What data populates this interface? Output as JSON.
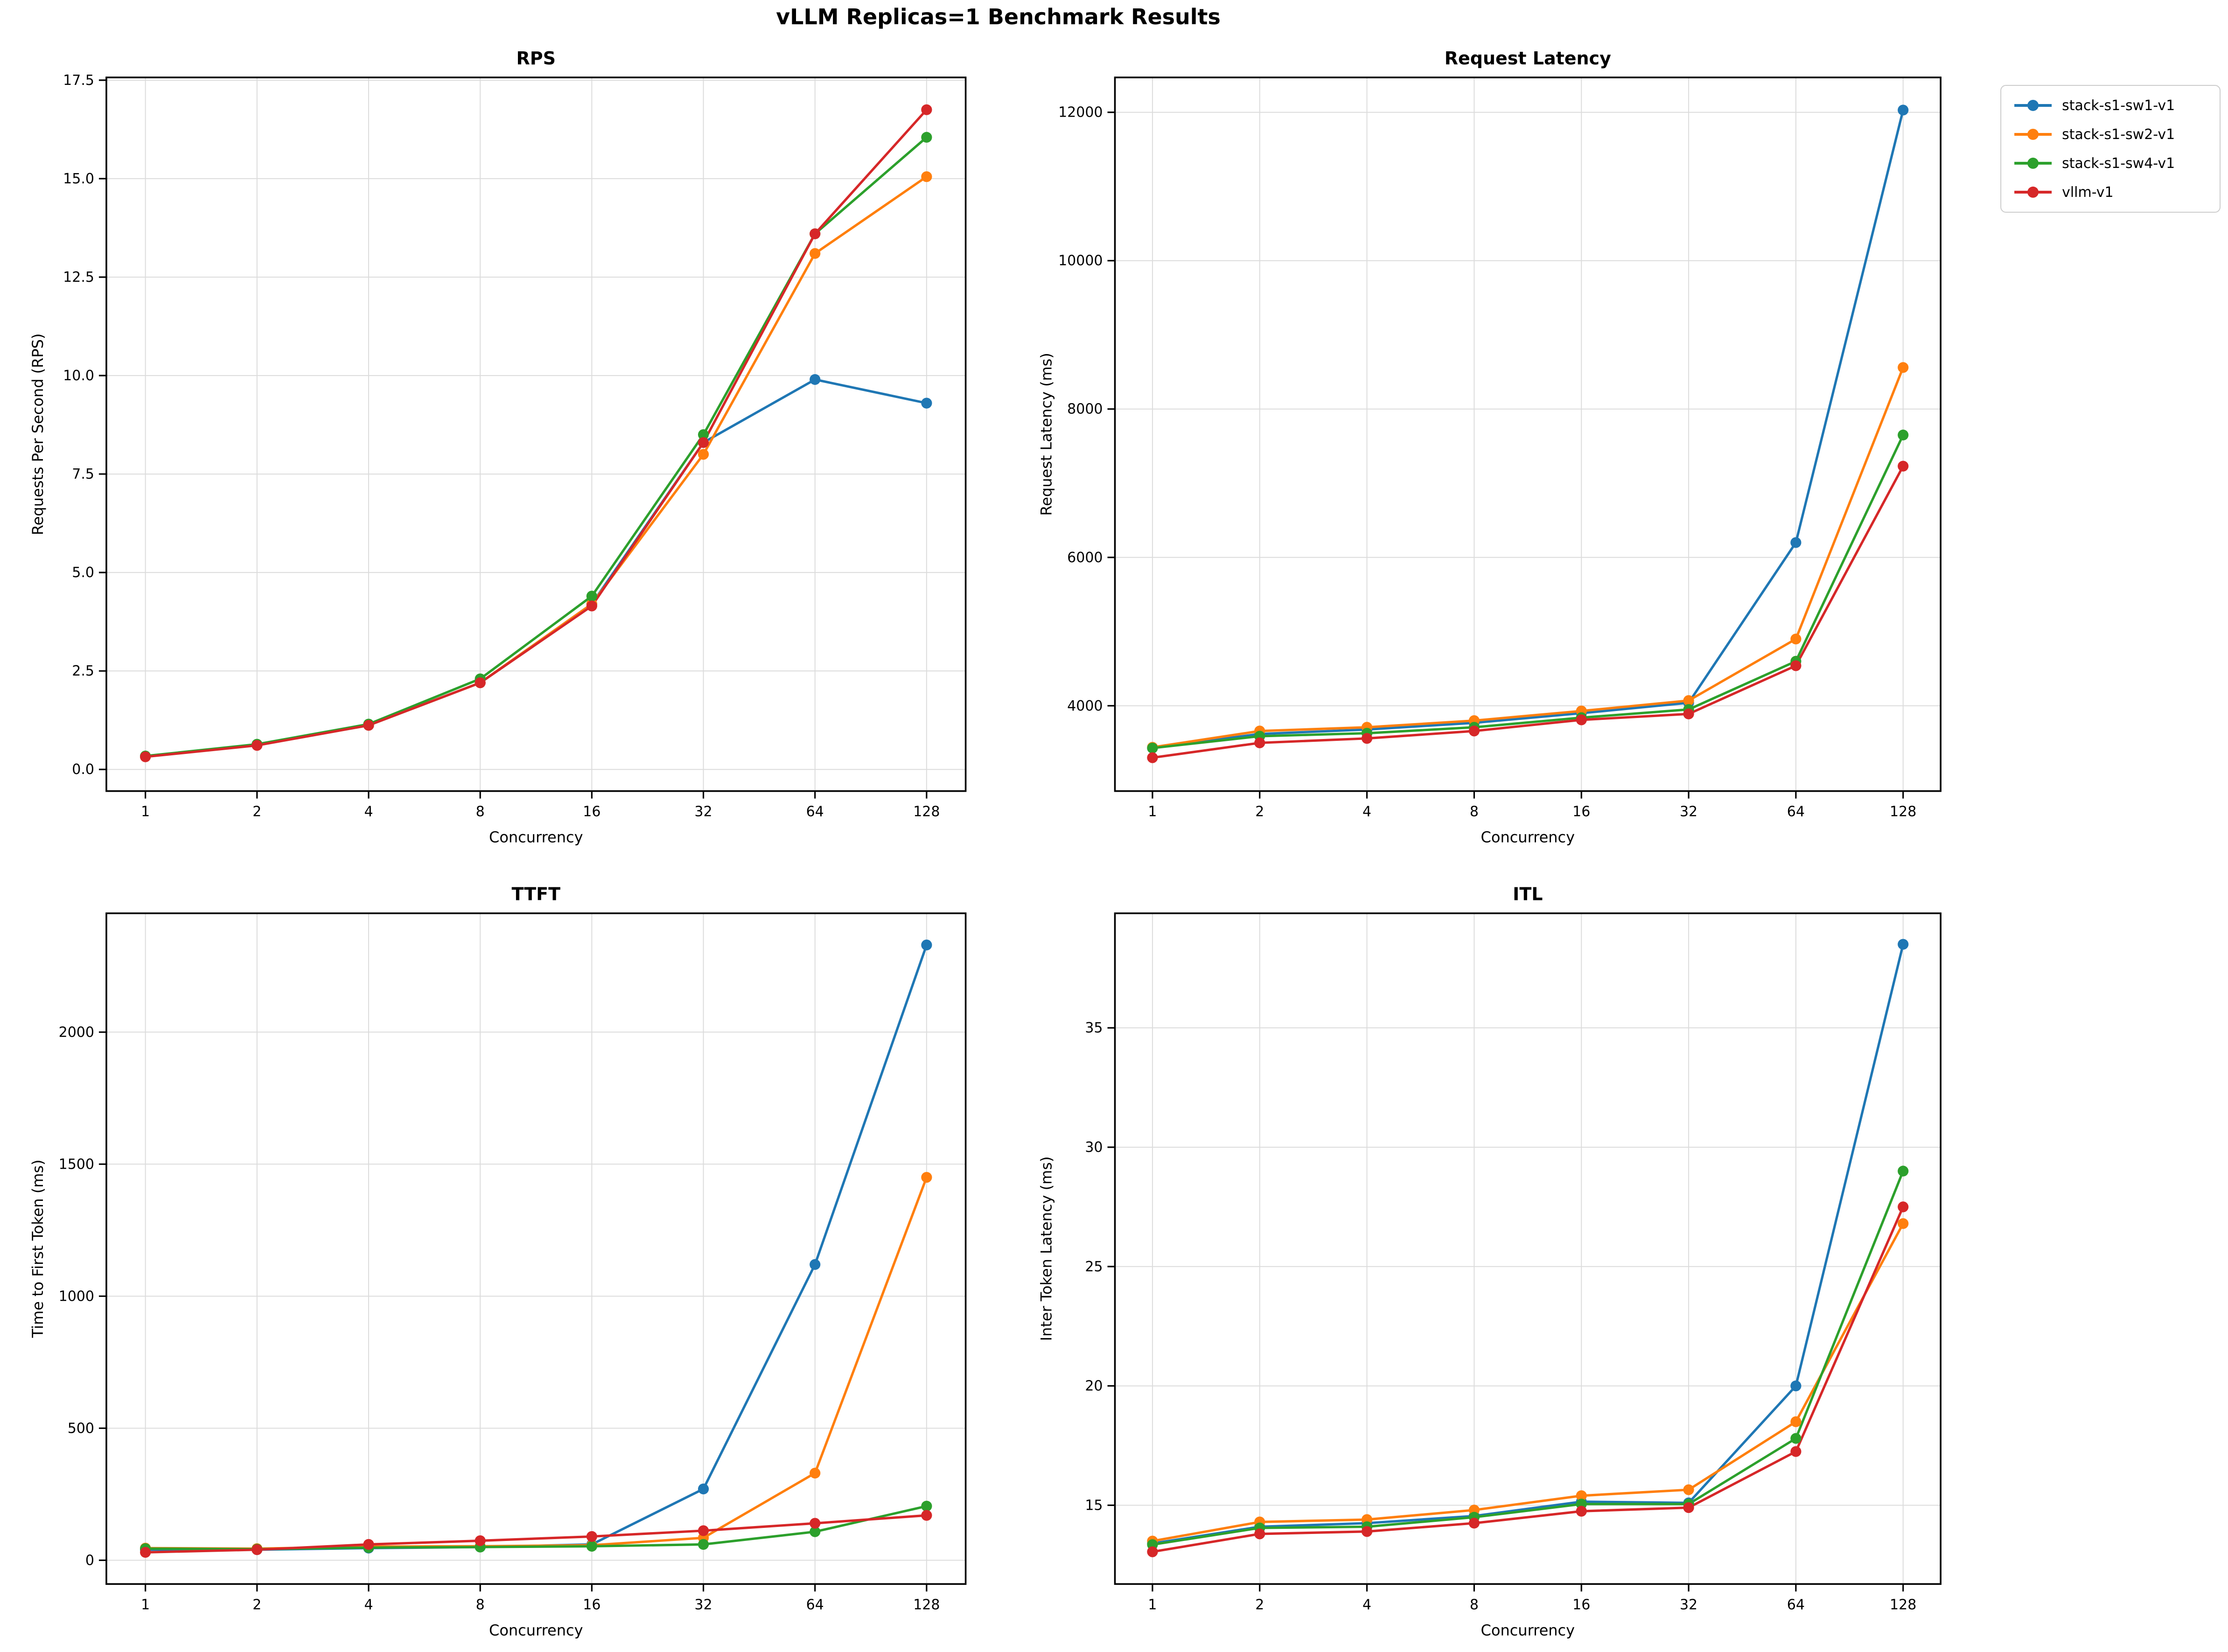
{
  "page": {
    "suptitle": "vLLM Replicas=1 Benchmark Results"
  },
  "legend": {
    "position": "outside-top-right",
    "items": [
      {
        "label": "stack-s1-sw1-v1",
        "color": "#1f77b4"
      },
      {
        "label": "stack-s1-sw2-v1",
        "color": "#ff7f0e"
      },
      {
        "label": "stack-s1-sw4-v1",
        "color": "#2ca02c"
      },
      {
        "label": "vllm-v1",
        "color": "#d62728"
      }
    ]
  },
  "chart_data": [
    {
      "id": "rps",
      "type": "line",
      "title": "RPS",
      "xlabel": "Concurrency",
      "ylabel": "Requests Per Second (RPS)",
      "x_categories": [
        1,
        2,
        4,
        8,
        16,
        32,
        64,
        128
      ],
      "x_tick_labels": [
        "1",
        "2",
        "4",
        "8",
        "16",
        "32",
        "64",
        "128"
      ],
      "ylim": [
        -0.55,
        17.57
      ],
      "yticks": [
        0,
        2.5,
        5,
        7.5,
        10,
        12.5,
        15,
        17.5
      ],
      "ytick_labels": [
        "0.0",
        "2.5",
        "5.0",
        "7.5",
        "10.0",
        "12.5",
        "15.0",
        "17.5"
      ],
      "grid": true,
      "series": [
        {
          "name": "stack-s1-sw1-v1",
          "color": "#1f77b4",
          "values": [
            0.33,
            0.62,
            1.12,
            2.2,
            4.2,
            8.3,
            9.9,
            9.3
          ]
        },
        {
          "name": "stack-s1-sw2-v1",
          "color": "#ff7f0e",
          "values": [
            0.33,
            0.62,
            1.12,
            2.2,
            4.2,
            8.0,
            13.1,
            15.05
          ]
        },
        {
          "name": "stack-s1-sw4-v1",
          "color": "#2ca02c",
          "values": [
            0.34,
            0.64,
            1.15,
            2.3,
            4.4,
            8.5,
            13.6,
            16.05
          ]
        },
        {
          "name": "vllm-v1",
          "color": "#d62728",
          "values": [
            0.32,
            0.61,
            1.12,
            2.2,
            4.15,
            8.3,
            13.6,
            16.75
          ]
        }
      ]
    },
    {
      "id": "latency",
      "type": "line",
      "title": "Request Latency",
      "xlabel": "Concurrency",
      "ylabel": "Request Latency (ms)",
      "x_categories": [
        1,
        2,
        4,
        8,
        16,
        32,
        64,
        128
      ],
      "x_tick_labels": [
        "1",
        "2",
        "4",
        "8",
        "16",
        "32",
        "64",
        "128"
      ],
      "ylim": [
        2850,
        12470
      ],
      "yticks": [
        4000,
        6000,
        8000,
        10000,
        12000
      ],
      "ytick_labels": [
        "4000",
        "6000",
        "8000",
        "10000",
        "12000"
      ],
      "grid": true,
      "series": [
        {
          "name": "stack-s1-sw1-v1",
          "color": "#1f77b4",
          "values": [
            3430,
            3620,
            3680,
            3770,
            3900,
            4040,
            6200,
            12030
          ]
        },
        {
          "name": "stack-s1-sw2-v1",
          "color": "#ff7f0e",
          "values": [
            3440,
            3660,
            3710,
            3800,
            3930,
            4070,
            4900,
            8560
          ]
        },
        {
          "name": "stack-s1-sw4-v1",
          "color": "#2ca02c",
          "values": [
            3430,
            3590,
            3630,
            3710,
            3840,
            3950,
            4600,
            7650
          ]
        },
        {
          "name": "vllm-v1",
          "color": "#d62728",
          "values": [
            3300,
            3500,
            3560,
            3660,
            3810,
            3890,
            4540,
            7230
          ]
        }
      ]
    },
    {
      "id": "ttft",
      "type": "line",
      "title": "TTFT",
      "xlabel": "Concurrency",
      "ylabel": "Time to First Token (ms)",
      "x_categories": [
        1,
        2,
        4,
        8,
        16,
        32,
        64,
        128
      ],
      "x_tick_labels": [
        "1",
        "2",
        "4",
        "8",
        "16",
        "32",
        "64",
        "128"
      ],
      "ylim": [
        -90,
        2450
      ],
      "yticks": [
        0,
        500,
        1000,
        1500,
        2000
      ],
      "ytick_labels": [
        "0",
        "500",
        "1000",
        "1500",
        "2000"
      ],
      "grid": true,
      "series": [
        {
          "name": "stack-s1-sw1-v1",
          "color": "#1f77b4",
          "values": [
            40,
            40,
            46,
            50,
            60,
            270,
            1120,
            2330
          ]
        },
        {
          "name": "stack-s1-sw2-v1",
          "color": "#ff7f0e",
          "values": [
            46,
            44,
            52,
            53,
            57,
            85,
            330,
            1450
          ]
        },
        {
          "name": "stack-s1-sw4-v1",
          "color": "#2ca02c",
          "values": [
            44,
            42,
            48,
            50,
            53,
            60,
            108,
            205
          ]
        },
        {
          "name": "vllm-v1",
          "color": "#d62728",
          "values": [
            30,
            40,
            60,
            74,
            90,
            112,
            140,
            170
          ]
        }
      ]
    },
    {
      "id": "itl",
      "type": "line",
      "title": "ITL",
      "xlabel": "Concurrency",
      "ylabel": "Inter Token Latency (ms)",
      "x_categories": [
        1,
        2,
        4,
        8,
        16,
        32,
        64,
        128
      ],
      "x_tick_labels": [
        "1",
        "2",
        "4",
        "8",
        "16",
        "32",
        "64",
        "128"
      ],
      "ylim": [
        11.7,
        39.8
      ],
      "yticks": [
        15,
        20,
        25,
        30,
        35
      ],
      "ytick_labels": [
        "15",
        "20",
        "25",
        "30",
        "35"
      ],
      "grid": true,
      "series": [
        {
          "name": "stack-s1-sw1-v1",
          "color": "#1f77b4",
          "values": [
            13.4,
            14.1,
            14.25,
            14.55,
            15.15,
            15.1,
            20.0,
            38.5
          ]
        },
        {
          "name": "stack-s1-sw2-v1",
          "color": "#ff7f0e",
          "values": [
            13.5,
            14.3,
            14.4,
            14.8,
            15.4,
            15.65,
            18.5,
            26.8
          ]
        },
        {
          "name": "stack-s1-sw4-v1",
          "color": "#2ca02c",
          "values": [
            13.35,
            14.05,
            14.1,
            14.5,
            15.05,
            15.05,
            17.8,
            29.0
          ]
        },
        {
          "name": "vllm-v1",
          "color": "#d62728",
          "values": [
            13.05,
            13.8,
            13.9,
            14.25,
            14.75,
            14.9,
            17.25,
            27.5
          ]
        }
      ]
    }
  ]
}
